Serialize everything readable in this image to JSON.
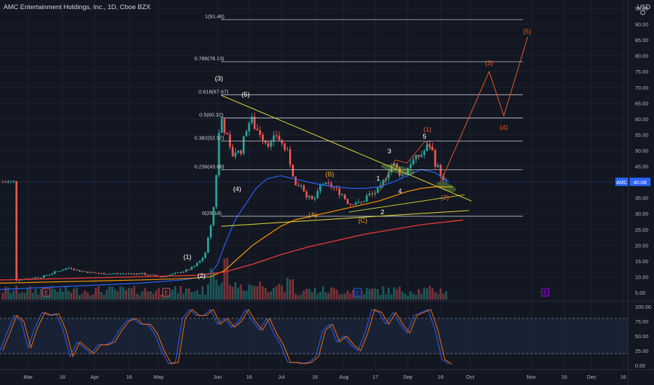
{
  "header": {
    "title": "AMC Entertainment Holdings, Inc., 1D, Cboe BZX",
    "currency": "USD"
  },
  "price_axis": {
    "labels": [
      "95.00",
      "90.00",
      "85.00",
      "80.00",
      "75.00",
      "70.00",
      "65.00",
      "60.00",
      "55.00",
      "50.00",
      "45.00",
      "40.00",
      "35.00",
      "30.00",
      "25.00",
      "20.00",
      "15.00",
      "10.00",
      "5.00"
    ]
  },
  "price_tag": {
    "symbol": "AMC",
    "price": "40.08"
  },
  "osc_axis": {
    "labels": [
      "100.00",
      "75.00",
      "50.00",
      "25.00",
      "0.00"
    ]
  },
  "time_axis": {
    "labels": [
      "Mar",
      "16",
      "Apr",
      "16",
      "May",
      "Jun",
      "16",
      "Jul",
      "16",
      "Aug",
      "17",
      "Sep",
      "16",
      "Oct",
      "Nov",
      "16",
      "Dec",
      "16"
    ]
  },
  "fib_levels": [
    {
      "label": "1(91.46)",
      "price": 91.46
    },
    {
      "label": "0.786(78.13)",
      "price": 78.13
    },
    {
      "label": "0.618(67.67)",
      "price": 67.67
    },
    {
      "label": "0.5(60.32)",
      "price": 60.32
    },
    {
      "label": "0.382(52.97)",
      "price": 52.97
    },
    {
      "label": "0.236(43.88)",
      "price": 43.88
    },
    {
      "label": "0(29.18)",
      "price": 29.18
    }
  ],
  "wave_labels": [
    {
      "text": "(1)",
      "color": "#ffffff"
    },
    {
      "text": "(2)",
      "color": "#ffffff"
    },
    {
      "text": "(3)",
      "color": "#ffffff"
    },
    {
      "text": "(4)",
      "color": "#ffffff"
    },
    {
      "text": "(5)",
      "color": "#ffffff"
    },
    {
      "text": "(A)",
      "color": "#f7a21b"
    },
    {
      "text": "(B)",
      "color": "#f7a21b"
    },
    {
      "text": "(C)",
      "color": "#f7a21b"
    },
    {
      "text": "1",
      "color": "#ffffff"
    },
    {
      "text": "2",
      "color": "#ffffff"
    },
    {
      "text": "3",
      "color": "#ffffff"
    },
    {
      "text": "4",
      "color": "#ffffff"
    },
    {
      "text": "5",
      "color": "#ffffff"
    },
    {
      "text": "(1)",
      "color": "#f05a28"
    },
    {
      "text": "(2)",
      "color": "#f05a28"
    },
    {
      "text": "(3)",
      "color": "#f05a28"
    },
    {
      "text": "(4)",
      "color": "#f05a28"
    },
    {
      "text": "(5)",
      "color": "#f05a28"
    }
  ],
  "event_markers": [
    "E",
    "E",
    "E",
    "E"
  ],
  "colors": {
    "background": "#131722",
    "grid": "#1e222d",
    "up": "#26a69a",
    "down": "#ef5350",
    "ma_short": "#2962ff",
    "ma_mid": "#ff9800",
    "ma_long": "#e53935",
    "trendline": "#e8e337",
    "projection": "#f05a28",
    "highlight": "#8bc34a",
    "stoch_k": "#2962ff",
    "stoch_d": "#ff6d00"
  }
}
